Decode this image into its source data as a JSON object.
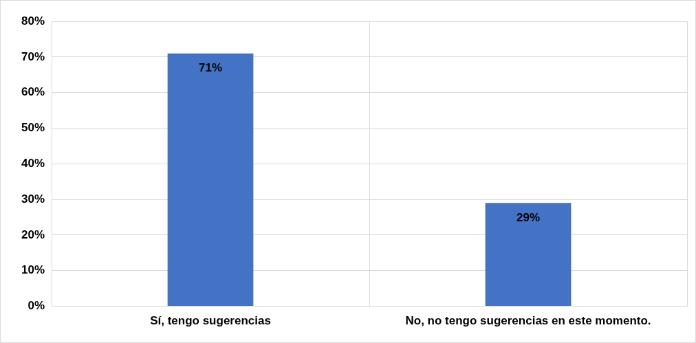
{
  "chart_data": {
    "type": "bar",
    "categories": [
      "Sí, tengo sugerencias",
      "No, no tengo sugerencias en este momento."
    ],
    "values": [
      71,
      29
    ],
    "color": "#4472c4",
    "value_labels": [
      "71%",
      "29%"
    ],
    "ylim": [
      0,
      80
    ],
    "yticks": [
      {
        "value": 0,
        "label": "0%"
      },
      {
        "value": 10,
        "label": "10%"
      },
      {
        "value": 20,
        "label": "20%"
      },
      {
        "value": 30,
        "label": "30%"
      },
      {
        "value": 40,
        "label": "40%"
      },
      {
        "value": 50,
        "label": "50%"
      },
      {
        "value": 60,
        "label": "60%"
      },
      {
        "value": 70,
        "label": "70%"
      },
      {
        "value": 80,
        "label": "80%"
      }
    ],
    "grid": true,
    "legend": false
  }
}
